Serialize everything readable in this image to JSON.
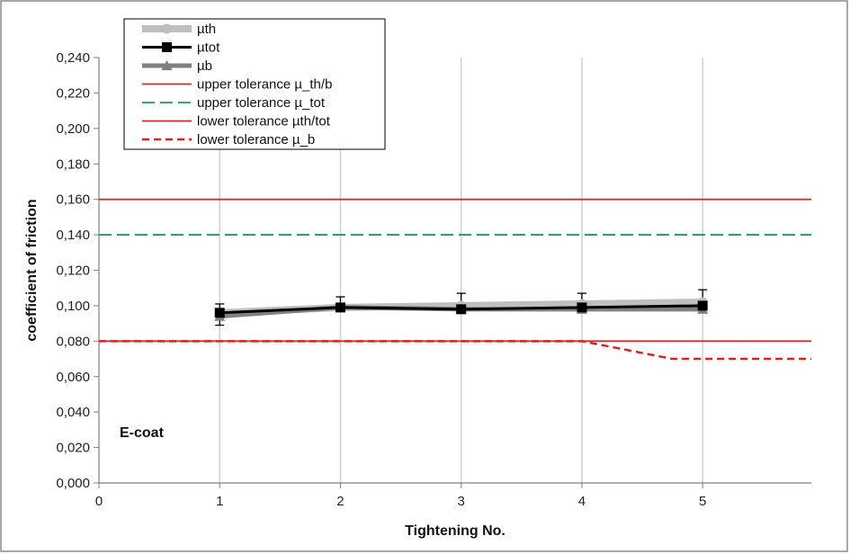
{
  "chart_data": {
    "type": "line",
    "xlabel": "Tightening No.",
    "ylabel": "coefficient of friction",
    "xlim": [
      0,
      5.9
    ],
    "ylim": [
      0,
      0.24
    ],
    "x_ticks": [
      {
        "value": 0,
        "label": "0"
      },
      {
        "value": 1,
        "label": "1"
      },
      {
        "value": 2,
        "label": "2"
      },
      {
        "value": 3,
        "label": "3"
      },
      {
        "value": 4,
        "label": "4"
      },
      {
        "value": 5,
        "label": "5"
      }
    ],
    "y_ticks": [
      {
        "value": 0.0,
        "label": "0,000"
      },
      {
        "value": 0.02,
        "label": "0,020"
      },
      {
        "value": 0.04,
        "label": "0,040"
      },
      {
        "value": 0.06,
        "label": "0,060"
      },
      {
        "value": 0.08,
        "label": "0,080"
      },
      {
        "value": 0.1,
        "label": "0,100"
      },
      {
        "value": 0.12,
        "label": "0,120"
      },
      {
        "value": 0.14,
        "label": "0,140"
      },
      {
        "value": 0.16,
        "label": "0,160"
      },
      {
        "value": 0.18,
        "label": "0,180"
      },
      {
        "value": 0.2,
        "label": "0,200"
      },
      {
        "value": 0.22,
        "label": "0,220"
      },
      {
        "value": 0.24,
        "label": "0,240"
      }
    ],
    "grid": "vertical",
    "legend_position": "top-left",
    "annotation": "E-coat",
    "series": [
      {
        "name": "µth",
        "kind": "data",
        "color": "#bfbfbf",
        "marker": "circle",
        "x": [
          1,
          2,
          3,
          4,
          5
        ],
        "y": [
          0.096,
          0.099,
          0.1,
          0.101,
          0.102
        ]
      },
      {
        "name": "µtot",
        "kind": "data",
        "color": "#000000",
        "marker": "square",
        "x": [
          1,
          2,
          3,
          4,
          5
        ],
        "y": [
          0.096,
          0.099,
          0.098,
          0.099,
          0.1
        ],
        "error_up": [
          0.101,
          0.105,
          0.107,
          0.107,
          0.109
        ],
        "error_down": [
          0.089,
          0.099,
          0.098,
          0.099,
          0.1
        ]
      },
      {
        "name": "µb",
        "kind": "data",
        "color": "#808080",
        "marker": "triangle",
        "x": [
          1,
          2,
          3,
          4,
          5
        ],
        "y": [
          0.094,
          0.099,
          0.098,
          0.098,
          0.098
        ]
      },
      {
        "name": "upper tolerance µ_th/b",
        "kind": "line",
        "color": "#d92a2a",
        "dash": "",
        "x": [
          0,
          5.9
        ],
        "y": [
          0.16,
          0.16
        ]
      },
      {
        "name": "upper tolerance µ_tot",
        "kind": "line",
        "color": "#1a9a6a",
        "dash": "14,6",
        "x": [
          0,
          5.9
        ],
        "y": [
          0.14,
          0.14
        ]
      },
      {
        "name": "lower tolerance µth/tot",
        "kind": "line",
        "color": "#d92a2a",
        "dash": "",
        "x": [
          0,
          5.9
        ],
        "y": [
          0.08,
          0.08
        ]
      },
      {
        "name": "lower tolerance µ_b",
        "kind": "line",
        "color": "#e02020",
        "dash": "8,5",
        "x": [
          0,
          4,
          4.75,
          5.9
        ],
        "y": [
          0.08,
          0.08,
          0.07,
          0.07
        ]
      }
    ]
  }
}
